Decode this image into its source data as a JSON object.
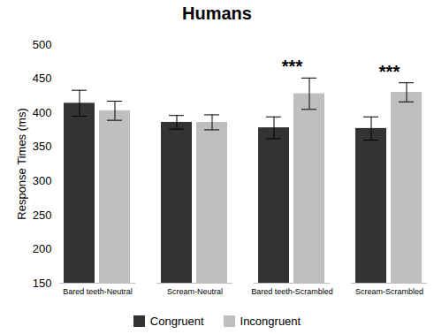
{
  "chart_data": {
    "type": "bar",
    "title": "Humans",
    "y_label": "Response Times (ms)",
    "categories": [
      "Bared teeth-Neutral",
      "Scream-Neutral",
      "Bared teeth-Scrambled",
      "Scream-Scrambled"
    ],
    "series": [
      {
        "name": "Congruent",
        "color": "#333333",
        "values": [
          414,
          386,
          378,
          377
        ],
        "errors": [
          19,
          10,
          16,
          17
        ]
      },
      {
        "name": "Incongruent",
        "color": "#bfbfbf",
        "values": [
          403,
          386,
          428,
          430
        ],
        "errors": [
          14,
          11,
          23,
          14
        ]
      }
    ],
    "annotations": [
      {
        "category": "Bared teeth-Scrambled",
        "text": "***"
      },
      {
        "category": "Scream-Scrambled",
        "text": "***"
      }
    ],
    "ylim": [
      150,
      500
    ],
    "yticks": [
      150,
      200,
      250,
      300,
      350,
      400,
      450,
      500
    ],
    "grid": false,
    "legend": "bottom"
  }
}
